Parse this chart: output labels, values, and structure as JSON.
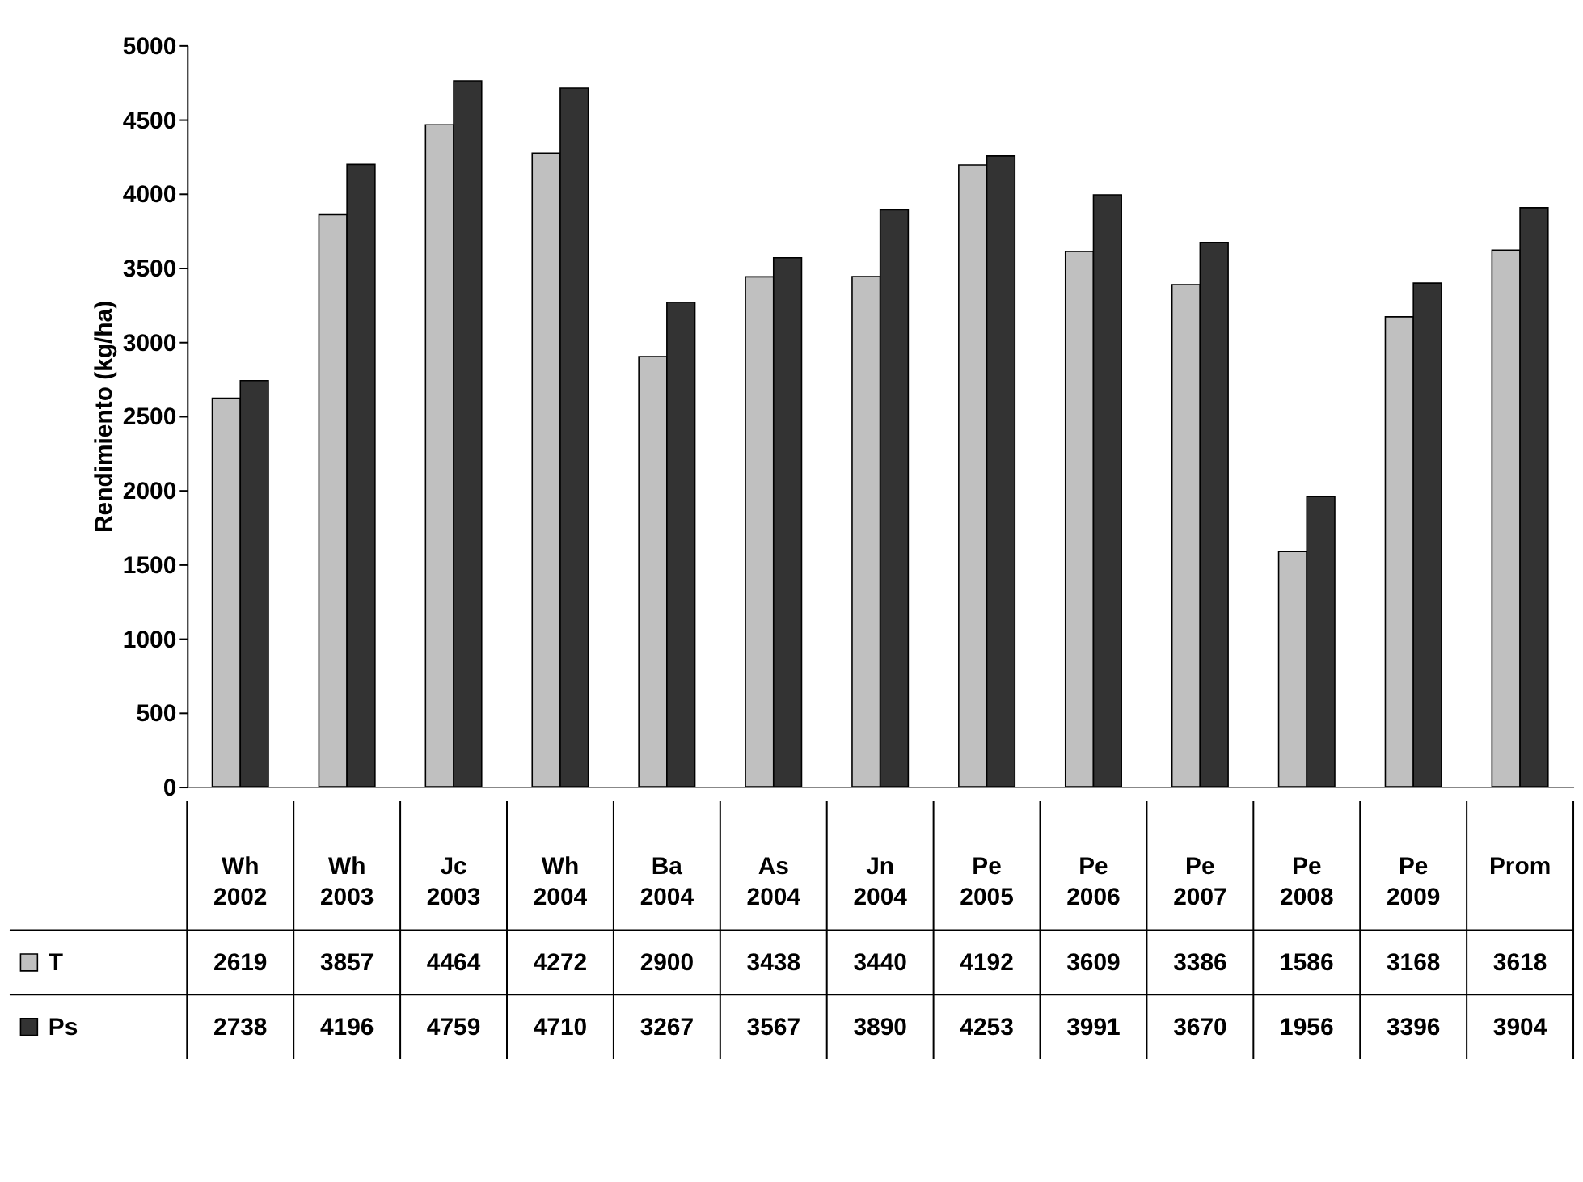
{
  "chart_data": {
    "type": "bar",
    "ylabel": "Rendimiento (kg/ha)",
    "categories": [
      "Wh 2002",
      "Wh 2003",
      "Jc 2003",
      "Wh 2004",
      "Ba 2004",
      "As 2004",
      "Jn 2004",
      "Pe 2005",
      "Pe 2006",
      "Pe 2007",
      "Pe 2008",
      "Pe 2009",
      "Prom"
    ],
    "series": [
      {
        "name": "T",
        "color": "#c0c0c0",
        "values": [
          2619,
          3857,
          4464,
          4272,
          2900,
          3438,
          3440,
          4192,
          3609,
          3386,
          1586,
          3168,
          3618
        ]
      },
      {
        "name": "Ps",
        "color": "#333333",
        "values": [
          2738,
          4196,
          4759,
          4710,
          3267,
          3567,
          3890,
          4253,
          3991,
          3670,
          1956,
          3396,
          3904
        ]
      }
    ],
    "ylim": [
      0,
      5000
    ],
    "yticks": [
      0,
      500,
      1000,
      1500,
      2000,
      2500,
      3000,
      3500,
      4000,
      4500,
      5000
    ],
    "grid": false,
    "legend": "bottom left",
    "data_labels": true
  }
}
